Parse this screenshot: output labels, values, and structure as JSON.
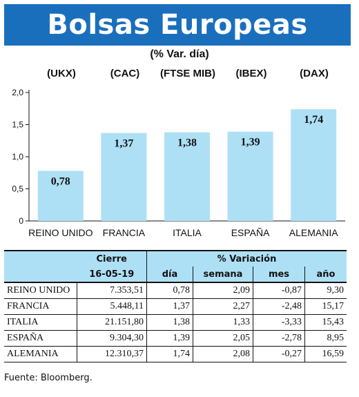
{
  "title": "Bolsas Europeas",
  "subtitle": "(% Var. día)",
  "indices": [
    "(UKX)",
    "(CAC)",
    "(FTSE MIB)",
    "(IBEX)",
    "(DAX)"
  ],
  "chart_data": {
    "type": "bar",
    "categories": [
      "REINO UNIDO",
      "FRANCIA",
      "ITALIA",
      "ESPAÑA",
      "ALEMANIA"
    ],
    "values": [
      0.78,
      1.37,
      1.38,
      1.39,
      1.74
    ],
    "value_labels": [
      "0,78",
      "1,37",
      "1,38",
      "1,39",
      "1,74"
    ],
    "ylim": [
      0,
      2.0
    ],
    "yticks": [
      0,
      0.5,
      1.0,
      1.5,
      2.0
    ],
    "ytick_labels": [
      "0",
      "0,5",
      "1,0",
      "1,5",
      "2,0"
    ],
    "bar_color": "#aee0f5",
    "grid": false
  },
  "table": {
    "header_cierre": "Cierre",
    "header_variacion": "% Variación",
    "date": "16-05-19",
    "columns": [
      "día",
      "semana",
      "mes",
      "año"
    ],
    "rows": [
      {
        "name": "REINO UNIDO",
        "cierre": "7.353,51",
        "dia": "0,78",
        "semana": "2,09",
        "mes": "-0,87",
        "ano": "9,30"
      },
      {
        "name": "FRANCIA",
        "cierre": "5.448,11",
        "dia": "1,37",
        "semana": "2,27",
        "mes": "-2,48",
        "ano": "15,17"
      },
      {
        "name": "ITALIA",
        "cierre": "21.151,80",
        "dia": "1,38",
        "semana": "1,33",
        "mes": "-3,33",
        "ano": "15,43"
      },
      {
        "name": "ESPAÑA",
        "cierre": "9.304,30",
        "dia": "1,39",
        "semana": "2,05",
        "mes": "-2,78",
        "ano": "8,95"
      },
      {
        "name": "ALEMANIA",
        "cierre": "12.310,37",
        "dia": "1,74",
        "semana": "2,08",
        "mes": "-0,27",
        "ano": "16,59"
      }
    ]
  },
  "source": "Fuente: Bloomberg.",
  "colors": {
    "title_bg": "#1a6fbd",
    "accent_light": "#aee0f5"
  }
}
